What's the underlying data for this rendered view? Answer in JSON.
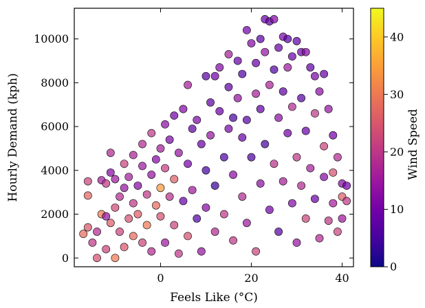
{
  "chart_data": {
    "type": "scatter",
    "title": "",
    "xlabel": "Feels Like (°C)",
    "ylabel": "Hourly Demand (kph)",
    "xlim": [
      -19,
      42.5
    ],
    "ylim": [
      -400,
      11400
    ],
    "xticks": [
      0,
      20,
      40
    ],
    "yticks": [
      0,
      2000,
      4000,
      6000,
      8000,
      10000
    ],
    "grid": false,
    "legend": "none",
    "colorbar": {
      "label": "Wind Speed",
      "range": [
        0,
        45
      ],
      "ticks": [
        0,
        10,
        20,
        30,
        40
      ],
      "colormap": "plasma",
      "colors": [
        "#0d0887",
        "#47039f",
        "#7301a8",
        "#9c179e",
        "#bd3786",
        "#d8576b",
        "#ed7953",
        "#fb9f3a",
        "#fdca26",
        "#f0f921"
      ]
    },
    "marker": {
      "edge_color": "#000000",
      "opacity": 0.72
    },
    "points": [
      [
        -17,
        1100,
        28
      ],
      [
        -16,
        1400,
        25
      ],
      [
        -16,
        3500,
        22
      ],
      [
        -16,
        2850,
        27
      ],
      [
        -15,
        700,
        20
      ],
      [
        -14,
        1200,
        18
      ],
      [
        -14,
        0,
        24
      ],
      [
        -13,
        3550,
        16
      ],
      [
        -13,
        2000,
        30
      ],
      [
        -12,
        400,
        22
      ],
      [
        -12,
        1900,
        14
      ],
      [
        -12,
        3400,
        20
      ],
      [
        -11,
        4800,
        18
      ],
      [
        -11,
        3900,
        12
      ],
      [
        -11,
        1600,
        26
      ],
      [
        -10,
        0,
        30
      ],
      [
        -10,
        2300,
        23
      ],
      [
        -10,
        3600,
        15
      ],
      [
        -9,
        1200,
        22
      ],
      [
        -9,
        2800,
        18
      ],
      [
        -8,
        3200,
        14
      ],
      [
        -8,
        4300,
        22
      ],
      [
        -8,
        500,
        25
      ],
      [
        -7,
        1800,
        24
      ],
      [
        -7,
        3700,
        16
      ],
      [
        -6,
        2500,
        20
      ],
      [
        -6,
        4700,
        17
      ],
      [
        -6,
        1000,
        28
      ],
      [
        -5,
        3300,
        12
      ],
      [
        -5,
        2000,
        26
      ],
      [
        -4,
        4200,
        15
      ],
      [
        -4,
        700,
        22
      ],
      [
        -4,
        5200,
        18
      ],
      [
        -3,
        2900,
        20
      ],
      [
        -3,
        1500,
        30
      ],
      [
        -2,
        3800,
        14
      ],
      [
        -2,
        5700,
        20
      ],
      [
        -2,
        300,
        18
      ],
      [
        -1,
        2400,
        28
      ],
      [
        -1,
        4500,
        12
      ],
      [
        0,
        5000,
        16
      ],
      [
        0,
        1900,
        24
      ],
      [
        0,
        3200,
        34
      ],
      [
        1,
        6100,
        13
      ],
      [
        1,
        4100,
        21
      ],
      [
        1,
        700,
        15
      ],
      [
        2,
        2800,
        19
      ],
      [
        2,
        5400,
        11
      ],
      [
        3,
        6500,
        10
      ],
      [
        3,
        1500,
        22
      ],
      [
        3,
        3600,
        26
      ],
      [
        4,
        4800,
        14
      ],
      [
        4,
        200,
        20
      ],
      [
        5,
        6800,
        12
      ],
      [
        5,
        2600,
        9
      ],
      [
        6,
        7900,
        16
      ],
      [
        6,
        4300,
        10
      ],
      [
        6,
        1000,
        24
      ],
      [
        7,
        5900,
        8
      ],
      [
        7,
        3100,
        15
      ],
      [
        8,
        6300,
        11
      ],
      [
        8,
        1800,
        6
      ],
      [
        9,
        5200,
        9
      ],
      [
        9,
        300,
        14
      ],
      [
        10,
        8300,
        7
      ],
      [
        10,
        4000,
        5
      ],
      [
        10,
        2300,
        12
      ],
      [
        11,
        7100,
        8
      ],
      [
        11,
        5600,
        14
      ],
      [
        12,
        8300,
        10
      ],
      [
        12,
        3300,
        4
      ],
      [
        12,
        1200,
        18
      ],
      [
        13,
        6700,
        9
      ],
      [
        13,
        8700,
        12
      ],
      [
        14,
        4600,
        6
      ],
      [
        14,
        2000,
        20
      ],
      [
        15,
        7800,
        8
      ],
      [
        15,
        9300,
        16
      ],
      [
        15,
        5900,
        11
      ],
      [
        16,
        6400,
        5
      ],
      [
        16,
        3800,
        13
      ],
      [
        16,
        800,
        20
      ],
      [
        17,
        9000,
        9
      ],
      [
        17,
        7300,
        14
      ],
      [
        18,
        8400,
        6
      ],
      [
        18,
        2800,
        18
      ],
      [
        18,
        5500,
        9
      ],
      [
        19,
        10400,
        10
      ],
      [
        19,
        6300,
        7
      ],
      [
        19,
        1600,
        15
      ],
      [
        20,
        9800,
        12
      ],
      [
        20,
        4600,
        6
      ],
      [
        21,
        8900,
        9
      ],
      [
        21,
        7500,
        16
      ],
      [
        21,
        300,
        22
      ],
      [
        22,
        10000,
        7
      ],
      [
        22,
        3400,
        13
      ],
      [
        22,
        6800,
        8
      ],
      [
        23,
        10900,
        9
      ],
      [
        23,
        9400,
        14
      ],
      [
        23,
        5200,
        5
      ],
      [
        24,
        10800,
        8
      ],
      [
        24,
        7900,
        17
      ],
      [
        24,
        2200,
        10
      ],
      [
        25,
        10900,
        12
      ],
      [
        25,
        8600,
        6
      ],
      [
        25,
        4300,
        19
      ],
      [
        26,
        9600,
        9
      ],
      [
        26,
        6400,
        13
      ],
      [
        26,
        1200,
        7
      ],
      [
        27,
        10100,
        11
      ],
      [
        27,
        7600,
        8
      ],
      [
        27,
        3500,
        16
      ],
      [
        28,
        10000,
        7
      ],
      [
        28,
        8700,
        15
      ],
      [
        28,
        5700,
        10
      ],
      [
        29,
        9200,
        9
      ],
      [
        29,
        6900,
        18
      ],
      [
        29,
        2500,
        12
      ],
      [
        30,
        9900,
        8
      ],
      [
        30,
        4600,
        20
      ],
      [
        30,
        700,
        14
      ],
      [
        31,
        9400,
        10
      ],
      [
        31,
        7300,
        7
      ],
      [
        31,
        3300,
        18
      ],
      [
        32,
        9400,
        12
      ],
      [
        32,
        5800,
        9
      ],
      [
        32,
        1800,
        22
      ],
      [
        33,
        8700,
        8
      ],
      [
        33,
        4100,
        16
      ],
      [
        34,
        8300,
        11
      ],
      [
        34,
        6600,
        20
      ],
      [
        34,
        2700,
        9
      ],
      [
        35,
        7600,
        13
      ],
      [
        35,
        900,
        18
      ],
      [
        36,
        8400,
        9
      ],
      [
        36,
        5100,
        22
      ],
      [
        36,
        3700,
        12
      ],
      [
        37,
        6800,
        14
      ],
      [
        37,
        1700,
        20
      ],
      [
        38,
        5600,
        10
      ],
      [
        38,
        3900,
        24
      ],
      [
        38,
        2500,
        16
      ],
      [
        39,
        4600,
        18
      ],
      [
        39,
        1200,
        22
      ],
      [
        40,
        3400,
        12
      ],
      [
        40,
        2800,
        26
      ],
      [
        40,
        1800,
        15
      ],
      [
        41,
        3300,
        10
      ],
      [
        41,
        2600,
        20
      ]
    ]
  }
}
